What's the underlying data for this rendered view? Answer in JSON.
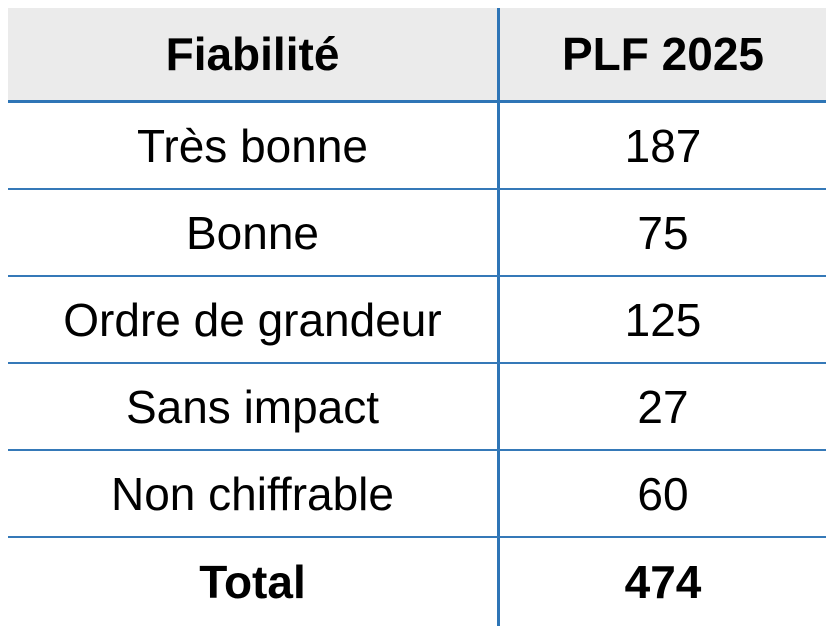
{
  "table": {
    "title": "Fiabilité / PLF 2025 table",
    "columns": [
      "Fiabilité",
      "PLF 2025"
    ],
    "rows": [
      {
        "label": "Très bonne",
        "value": "187"
      },
      {
        "label": "Bonne",
        "value": "75"
      },
      {
        "label": "Ordre de grandeur",
        "value": "125"
      },
      {
        "label": "Sans impact",
        "value": "27"
      },
      {
        "label": "Non chiffrable",
        "value": "60"
      }
    ],
    "total": {
      "label": "Total",
      "value": "474"
    }
  },
  "colors": {
    "border_blue": "#2E75B6",
    "row_line": "#3579B8",
    "header_bg": "#EBEBEB",
    "text_color": "#000000",
    "page_bg": "#FFFFFF"
  }
}
